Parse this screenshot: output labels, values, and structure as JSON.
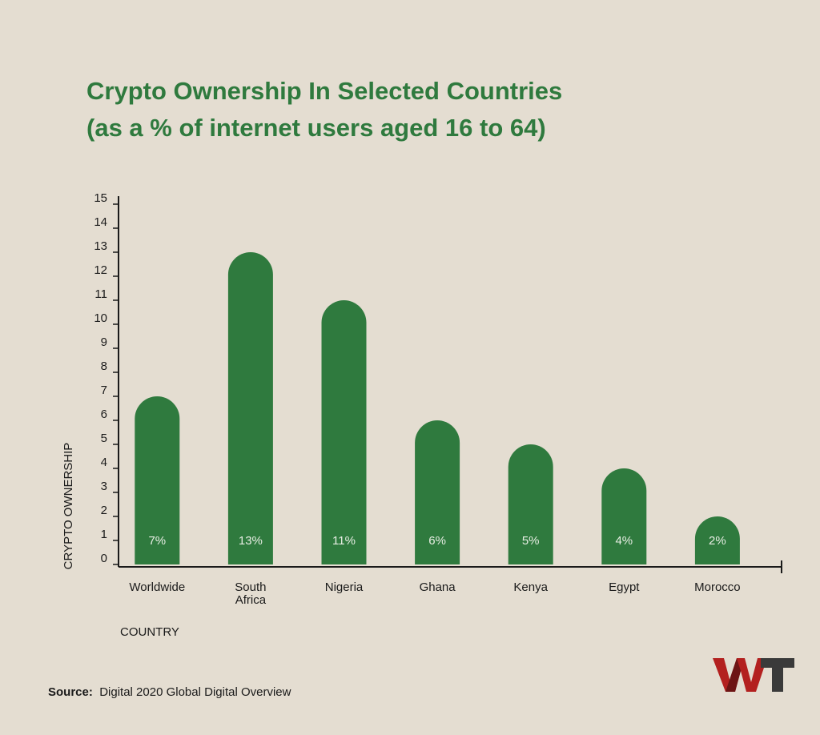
{
  "chart_data": {
    "type": "bar",
    "title": "Crypto Ownership In Selected Countries",
    "subtitle": "(as a % of internet users aged 16 to 64)",
    "categories": [
      "Worldwide",
      "South Africa",
      "Nigeria",
      "Ghana",
      "Kenya",
      "Egypt",
      "Morocco"
    ],
    "values": [
      7,
      13,
      11,
      6,
      5,
      4,
      2
    ],
    "value_labels": [
      "7%",
      "13%",
      "11%",
      "6%",
      "5%",
      "4%",
      "2%"
    ],
    "color": "#2f7a3e",
    "ylim": [
      0,
      15
    ],
    "yticks": [
      0,
      1,
      2,
      3,
      4,
      5,
      6,
      7,
      8,
      9,
      10,
      11,
      12,
      13,
      14,
      15
    ],
    "y_label": "CRYPTO OWNERSHIP",
    "x_label": "COUNTRY"
  },
  "footer": {
    "label": "Source:",
    "text": "Digital 2020 Global Digital Overview"
  }
}
